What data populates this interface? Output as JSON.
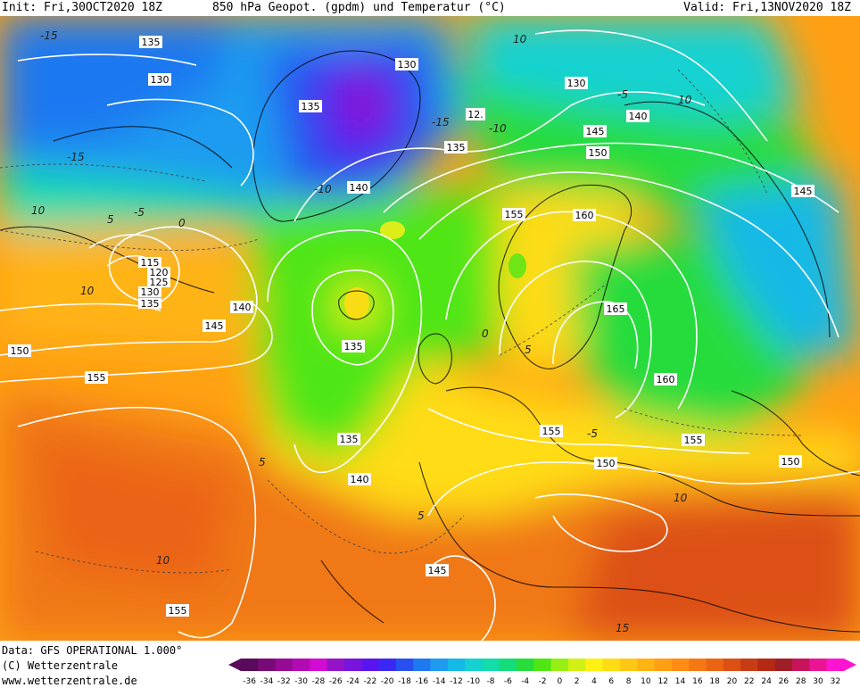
{
  "header": {
    "init": "Init: Fri,30OCT2020 18Z",
    "title": "850 hPa Geopot. (gpdm) und Temperatur (°C)",
    "valid": "Valid: Fri,13NOV2020 18Z"
  },
  "footer": {
    "data_line": "Data: GFS OPERATIONAL 1.000°",
    "copyright": "(C) Wetterzentrale",
    "url": "www.wetterzentrale.de"
  },
  "geopotential_labels": [
    "135",
    "130",
    "130",
    "130",
    "135",
    "140",
    "145",
    "150",
    "155",
    "160",
    "165",
    "160",
    "155",
    "150",
    "145",
    "140",
    "135",
    "135",
    "135",
    "140",
    "145",
    "150",
    "155",
    "155",
    "150",
    "145",
    "140",
    "135",
    "130",
    "125",
    "120",
    "115",
    "12.",
    "155"
  ],
  "temperature_labels": [
    "-15",
    "-15",
    "-15",
    "-10",
    "-10",
    "-5",
    "-5",
    "-5",
    "0",
    "0",
    "5",
    "5",
    "5",
    "5",
    "10",
    "10",
    "10",
    "10",
    "10",
    "15",
    "10"
  ],
  "colorscale": {
    "ticks": [
      "-36",
      "-34",
      "-32",
      "-30",
      "-28",
      "-26",
      "-24",
      "-22",
      "-20",
      "-18",
      "-16",
      "-14",
      "-12",
      "-10",
      "-8",
      "-6",
      "-4",
      "-2",
      "0",
      "2",
      "4",
      "6",
      "8",
      "10",
      "12",
      "14",
      "16",
      "18",
      "20",
      "22",
      "24",
      "26",
      "28",
      "30",
      "32"
    ],
    "colors": [
      "#5a0a5a",
      "#780a78",
      "#960a96",
      "#b40ab4",
      "#d20ad2",
      "#9614c8",
      "#7814dc",
      "#5a14f0",
      "#3c28f5",
      "#2850f0",
      "#1e78f0",
      "#1e9bf0",
      "#14b9e6",
      "#14d2d2",
      "#14dcaa",
      "#14dc78",
      "#28dc3c",
      "#50e614",
      "#96f014",
      "#d2f014",
      "#fff014",
      "#ffdc14",
      "#ffc814",
      "#ffb414",
      "#ffa014",
      "#ff8c14",
      "#f57814",
      "#eb6414",
      "#dc5014",
      "#c83c14",
      "#b42814",
      "#a01e28",
      "#c8145a",
      "#eb1496",
      "#ff14d2"
    ]
  }
}
